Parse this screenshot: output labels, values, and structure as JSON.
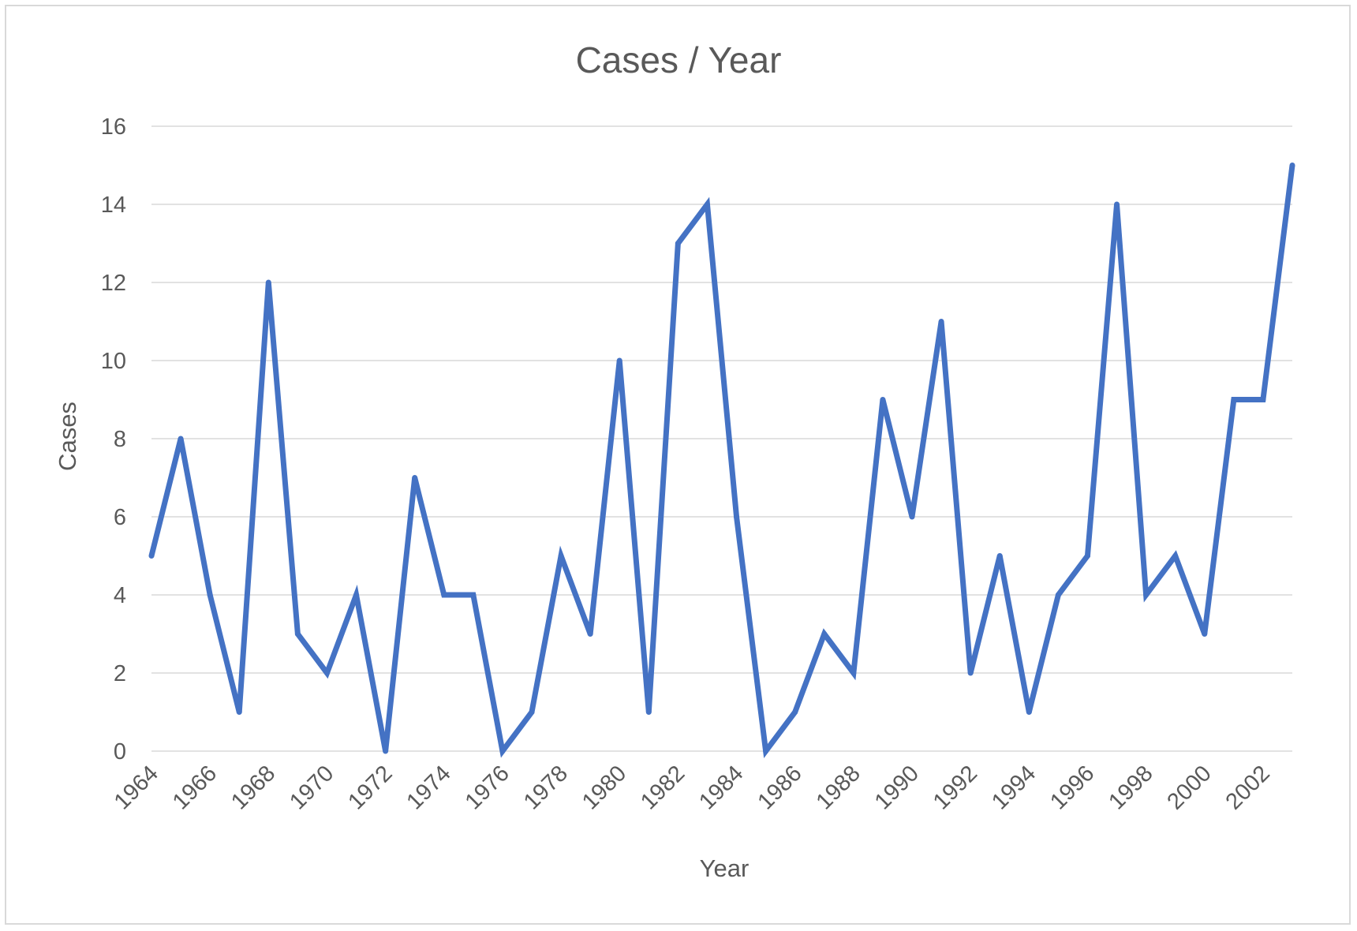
{
  "chart_data": {
    "type": "line",
    "title": "Cases / Year",
    "xlabel": "Year",
    "ylabel": "Cases",
    "ylim": [
      0,
      16
    ],
    "yticks": [
      "0",
      "2",
      "4",
      "6",
      "8",
      "10",
      "12",
      "14",
      "16"
    ],
    "xtick_labels": [
      "1964",
      "1966",
      "1968",
      "1970",
      "1972",
      "1974",
      "1976",
      "1978",
      "1980",
      "1982",
      "1984",
      "1986",
      "1988",
      "1990",
      "1992",
      "1994",
      "1996",
      "1998",
      "2000",
      "2002"
    ],
    "grid": true,
    "legend": "none",
    "categories": [
      "1964",
      "1965",
      "1966",
      "1967",
      "1968",
      "1969",
      "1970",
      "1971",
      "1972",
      "1973",
      "1974",
      "1975",
      "1976",
      "1977",
      "1978",
      "1979",
      "1980",
      "1981",
      "1982",
      "1983",
      "1984",
      "1985",
      "1986",
      "1987",
      "1988",
      "1989",
      "1990",
      "1991",
      "1992",
      "1993",
      "1994",
      "1995",
      "1996",
      "1997",
      "1998",
      "1999",
      "2000",
      "2001",
      "2002",
      "2003"
    ],
    "series": [
      {
        "values": [
          5,
          8,
          4,
          1,
          12,
          3,
          2,
          4,
          0,
          7,
          4,
          4,
          0,
          1,
          5,
          3,
          10,
          1,
          13,
          14,
          6,
          0,
          1,
          3,
          2,
          9,
          6,
          11,
          2,
          5,
          1,
          4,
          5,
          14,
          4,
          5,
          3,
          9,
          9,
          15
        ],
        "color": "#4472c4"
      }
    ],
    "colors": {
      "line": "#4472c4",
      "grid": "#d9d9d9",
      "text": "#595959",
      "border": "#d9d9d9"
    }
  }
}
